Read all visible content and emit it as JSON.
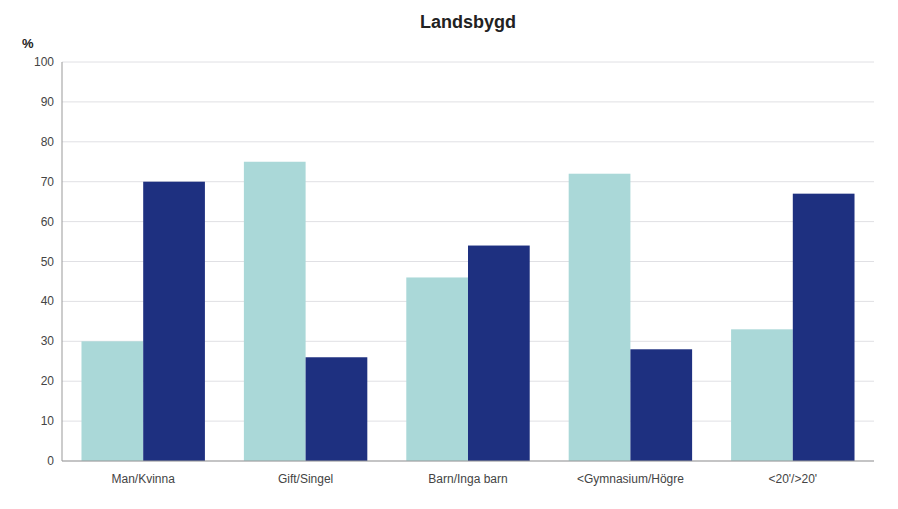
{
  "chart_data": {
    "type": "bar",
    "title": "Landsbygd",
    "ylabel": "%",
    "categories": [
      "Man/Kvinna",
      "Gift/Singel",
      "Barn/Inga barn",
      "<Gymnasium/Högre",
      "<20'/>20'"
    ],
    "series": [
      {
        "color": "#aad8d8",
        "values": [
          30,
          75,
          46,
          72,
          33
        ]
      },
      {
        "color": "#1e3080",
        "values": [
          70,
          26,
          54,
          28,
          67
        ]
      }
    ],
    "ylim": [
      0,
      100
    ],
    "yticks": [
      0,
      10,
      20,
      30,
      40,
      50,
      60,
      70,
      80,
      90,
      100
    ],
    "grid": true
  }
}
